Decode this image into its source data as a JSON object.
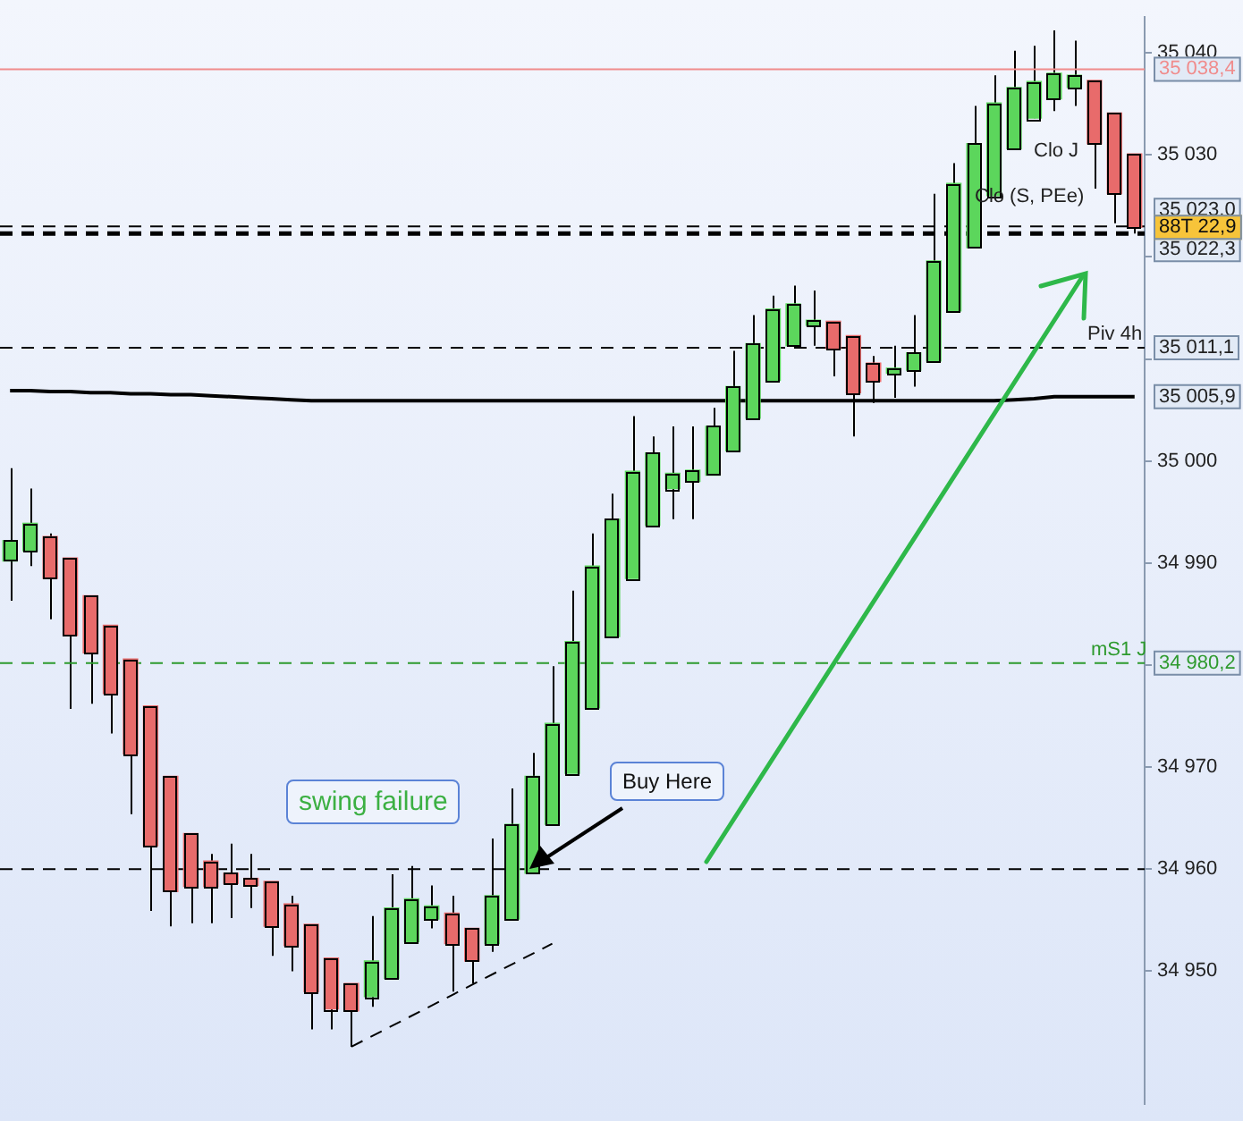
{
  "chart_data": {
    "type": "candlestick",
    "categories": [
      null,
      null,
      null,
      null,
      null,
      null,
      null,
      null,
      null,
      null,
      null,
      null,
      null,
      null,
      null,
      null,
      null,
      null,
      null,
      null,
      null,
      null,
      null,
      null,
      null,
      null,
      null,
      null,
      null,
      null,
      null,
      null,
      null,
      null,
      null,
      null,
      null,
      null,
      null,
      null,
      null,
      null,
      null,
      null,
      null,
      null,
      null,
      null,
      null,
      null,
      null,
      null,
      null,
      null,
      null,
      null,
      null
    ],
    "ohlc": [
      [
        34990.2,
        34999.3,
        34986.3,
        34992.2
      ],
      [
        34991.2,
        34997.3,
        34989.7,
        34993.9
      ],
      [
        34992.6,
        34992.9,
        34984.5,
        34988.5
      ],
      [
        34990.5,
        34990.5,
        34975.7,
        34982.9
      ],
      [
        34986.8,
        34986.8,
        34976.2,
        34981.2
      ],
      [
        34983.9,
        34983.9,
        34973.3,
        34977.2
      ],
      [
        34980.6,
        34980.6,
        34965.4,
        34971.3
      ],
      [
        34976.0,
        34976.0,
        34955.9,
        34962.3
      ],
      [
        34969.1,
        34969.1,
        34954.4,
        34957.8
      ],
      [
        34963.5,
        34963.5,
        34954.7,
        34958.3
      ],
      [
        34960.8,
        34961.5,
        34954.7,
        34958.3
      ],
      [
        34959.6,
        34962.5,
        34955.2,
        34958.6
      ],
      [
        34959.1,
        34961.5,
        34956.2,
        34958.4
      ],
      [
        34958.8,
        34958.8,
        34951.5,
        34954.4
      ],
      [
        34956.6,
        34957.4,
        34950.0,
        34952.5
      ],
      [
        34954.6,
        34954.6,
        34944.3,
        34948.0
      ],
      [
        34951.3,
        34951.3,
        34944.3,
        34946.3
      ],
      [
        34948.8,
        34948.8,
        34942.6,
        34946.1
      ],
      [
        34947.5,
        34955.4,
        34946.5,
        34951.0
      ],
      [
        34949.3,
        34959.5,
        34949.3,
        34956.2
      ],
      [
        34952.9,
        34960.3,
        34952.9,
        34957.1
      ],
      [
        34955.1,
        34958.4,
        34954.2,
        34956.4
      ],
      [
        34955.7,
        34957.4,
        34948.0,
        34952.7
      ],
      [
        34954.2,
        34954.2,
        34948.8,
        34951.0
      ],
      [
        34952.7,
        34963.0,
        34951.9,
        34957.4
      ],
      [
        34955.1,
        34967.9,
        34955.1,
        34964.4
      ],
      [
        34959.6,
        34971.4,
        34959.6,
        34969.1
      ],
      [
        34964.4,
        34979.9,
        34964.4,
        34974.3
      ],
      [
        34969.4,
        34987.3,
        34969.4,
        34982.3
      ],
      [
        34975.8,
        34992.9,
        34975.8,
        34989.7
      ],
      [
        34982.8,
        34996.8,
        34982.8,
        34994.3
      ],
      [
        34988.5,
        35004.4,
        34988.5,
        34999.0
      ],
      [
        34993.7,
        35002.4,
        34993.7,
        35000.8
      ],
      [
        34997.3,
        35003.4,
        34994.3,
        34998.8
      ],
      [
        34998.0,
        35003.4,
        34994.3,
        34999.1
      ],
      [
        34998.6,
        35005.2,
        34998.6,
        35003.4
      ],
      [
        35001.0,
        35010.8,
        35001.0,
        35007.3
      ],
      [
        35004.2,
        35014.3,
        35004.2,
        35011.5
      ],
      [
        35007.9,
        35016.2,
        35007.9,
        35014.9
      ],
      [
        35011.3,
        35017.2,
        35011.3,
        35015.4
      ],
      [
        35013.3,
        35016.7,
        35011.3,
        35013.8
      ],
      [
        35013.7,
        35013.7,
        35008.3,
        35011.0
      ],
      [
        35012.3,
        35012.3,
        35002.4,
        35006.7
      ],
      [
        35009.6,
        35010.3,
        35005.7,
        35007.8
      ],
      [
        35008.6,
        35011.3,
        35006.2,
        35009.1
      ],
      [
        35008.9,
        35014.3,
        35007.3,
        35010.6
      ],
      [
        35009.8,
        35026.2,
        35009.8,
        35019.6
      ],
      [
        35014.7,
        35029.2,
        35014.7,
        35027.2
      ],
      [
        35020.9,
        35034.8,
        35020.9,
        35031.1
      ],
      [
        35026.0,
        35037.8,
        35026.0,
        35035.1
      ],
      [
        35030.6,
        35040.2,
        35030.6,
        35036.6
      ],
      [
        35033.6,
        35040.7,
        35033.6,
        35037.2
      ],
      [
        35035.5,
        35042.2,
        35034.3,
        35038.0
      ],
      [
        35036.6,
        35041.2,
        35034.8,
        35037.8
      ],
      [
        35037.3,
        35037.3,
        35026.7,
        35031.1
      ],
      [
        35034.1,
        35034.1,
        35023.3,
        35026.2
      ],
      [
        35030.1,
        35030.1,
        35022.3,
        35022.9
      ]
    ],
    "colors": [
      "#5cd65c",
      "#5cd65c",
      "#e86b6b",
      "#e86b6b",
      "#e86b6b",
      "#e86b6b",
      "#e86b6b",
      "#e86b6b",
      "#e86b6b",
      "#e86b6b",
      "#e86b6b",
      "#e86b6b",
      "#e86b6b",
      "#e86b6b",
      "#e86b6b",
      "#e86b6b",
      "#e86b6b",
      "#e86b6b",
      "#5cd65c",
      "#5cd65c",
      "#5cd65c",
      "#5cd65c",
      "#e86b6b",
      "#e86b6b",
      "#5cd65c",
      "#5cd65c",
      "#5cd65c",
      "#5cd65c",
      "#5cd65c",
      "#5cd65c",
      "#5cd65c",
      "#5cd65c",
      "#5cd65c",
      "#5cd65c",
      "#5cd65c",
      "#5cd65c",
      "#5cd65c",
      "#5cd65c",
      "#5cd65c",
      "#5cd65c",
      "#5cd65c",
      "#e86b6b",
      "#e86b6b",
      "#e86b6b",
      "#5cd65c",
      "#5cd65c",
      "#5cd65c",
      "#5cd65c",
      "#5cd65c",
      "#5cd65c",
      "#5cd65c",
      "#5cd65c",
      "#5cd65c",
      "#5cd65c",
      "#e86b6b",
      "#e86b6b",
      "#e86b6b"
    ],
    "series": [
      {
        "type": "line",
        "color": "#000000",
        "values": [
          35006.9,
          35006.9,
          35006.8,
          35006.8,
          35006.7,
          35006.7,
          35006.6,
          35006.6,
          35006.5,
          35006.5,
          35006.4,
          35006.3,
          35006.2,
          35006.1,
          35006.0,
          35005.9,
          35005.9,
          35005.9,
          35005.9,
          35005.9,
          35005.9,
          35005.9,
          35005.9,
          35005.9,
          35005.9,
          35005.9,
          35005.9,
          35005.9,
          35005.9,
          35005.9,
          35005.9,
          35005.9,
          35005.9,
          35005.9,
          35005.9,
          35005.9,
          35005.9,
          35005.9,
          35005.9,
          35005.9,
          35005.9,
          35005.9,
          35005.9,
          35005.9,
          35005.9,
          35005.9,
          35005.9,
          35005.9,
          35005.9,
          35005.9,
          35006.0,
          35006.1,
          35006.3,
          35006.3,
          35006.3,
          35006.3,
          35006.3
        ]
      },
      {
        "type": "line",
        "color": "#000000",
        "line_style": "dashed",
        "values": [
          null,
          null,
          null,
          null,
          null,
          null,
          null,
          null,
          null,
          null,
          null,
          null,
          null,
          null,
          null,
          null,
          null,
          34942.6,
          null,
          null,
          null,
          null,
          null,
          null,
          null,
          null,
          null,
          34952.7,
          null,
          null,
          null,
          null,
          null,
          null,
          null,
          null,
          null,
          null,
          null,
          null,
          null,
          null,
          null,
          null,
          null,
          null,
          null,
          null,
          null,
          null,
          null,
          null,
          null,
          null,
          null,
          null,
          null
        ]
      }
    ],
    "ylim": [
      34937,
      35043.5
    ],
    "yticks": [
      {
        "value": 34950,
        "label": "34 950"
      },
      {
        "value": 34960,
        "label": "34 960"
      },
      {
        "value": 34970,
        "label": "34 970"
      },
      {
        "value": 34980,
        "label": null
      },
      {
        "value": 34990,
        "label": "34 990"
      },
      {
        "value": 35000,
        "label": "35 000"
      },
      {
        "value": 35010,
        "label": null
      },
      {
        "value": 35020,
        "label": null
      },
      {
        "value": 35030,
        "label": "35 030"
      },
      {
        "value": 35040,
        "label": "35 040"
      }
    ],
    "tick_labels": "y",
    "grid": false,
    "legend": false,
    "marker": "none",
    "ref_lines": [
      {
        "axis": "y",
        "value": 35038.4,
        "label": "35 038,4",
        "color": "#f08c8c",
        "line_style": "solid"
      },
      {
        "axis": "y",
        "value": 35023.0,
        "label": "35 023,0",
        "color": "#000000",
        "line_style": "dashed"
      },
      {
        "axis": "y",
        "value": 35022.3,
        "label": "35 022,3",
        "color": "#000000",
        "line_style": "dashed"
      },
      {
        "axis": "y",
        "value": 35011.1,
        "label": "35 011,1",
        "color": "#000000",
        "line_style": "dashed"
      },
      {
        "axis": "y",
        "value": 34980.2,
        "label": "34 980,2",
        "color": "#2e9a2e",
        "line_style": "dashed"
      },
      {
        "axis": "y",
        "value": 34960,
        "color": "#000000",
        "line_style": "dashed"
      }
    ],
    "annotations": [
      "swing failure",
      "Buy Here",
      {
        "text": "Piv 4h",
        "y": 35011.1
      },
      {
        "text": "mS1 J",
        "y": 34980.2
      },
      {
        "text": "Clo (S, PEe)",
        "y": 35023.0
      },
      "Clo J",
      "88T 22,9",
      "35 005,9"
    ]
  }
}
